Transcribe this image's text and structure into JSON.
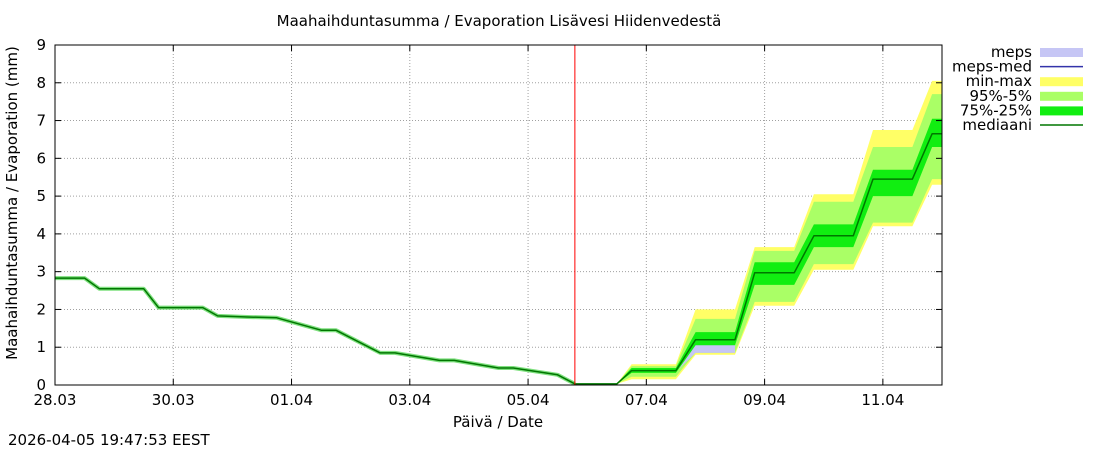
{
  "chart_data": {
    "type": "area",
    "title": "Maahaihduntasumma / Evaporation   Lisävesi Hiidenvedestä",
    "xlabel": "Päivä / Date",
    "ylabel": "Maahaihduntasumma / Evaporation (mm)",
    "ylim": [
      0,
      9
    ],
    "xlim": [
      "2026-03-28T00:00",
      "2026-04-12T00:00"
    ],
    "grid": true,
    "legend_position": "right, outside plot",
    "forecast_start": "2026-04-05T19:00",
    "x_tick_labels": [
      "28.03",
      "30.03",
      "01.04",
      "03.04",
      "05.04",
      "07.04",
      "09.04",
      "11.04"
    ],
    "x_tick_dates": [
      "2026-03-28",
      "2026-03-30",
      "2026-04-01",
      "2026-04-03",
      "2026-04-05",
      "2026-04-07",
      "2026-04-09",
      "2026-04-11"
    ],
    "y_tick_labels": [
      "0",
      "1",
      "2",
      "3",
      "4",
      "5",
      "6",
      "7",
      "8",
      "9"
    ],
    "legend": [
      {
        "label": "meps",
        "color": "#c6c6f5",
        "style": "band"
      },
      {
        "label": "meps-med",
        "color": "#3333aa",
        "style": "line"
      },
      {
        "label": "min-max",
        "color": "#ffff66",
        "style": "band"
      },
      {
        "label": "95%-5%",
        "color": "#aaff66",
        "style": "band"
      },
      {
        "label": "75%-25%",
        "color": "#11ee11",
        "style": "band"
      },
      {
        "label": "mediaani",
        "color": "#007700",
        "style": "line"
      }
    ],
    "observed": {
      "x": [
        "2026-03-28T00:00",
        "2026-03-28T12:00",
        "2026-03-28T18:00",
        "2026-03-29T12:00",
        "2026-03-29T18:00",
        "2026-03-30T12:00",
        "2026-03-30T18:00",
        "2026-03-31T06:00",
        "2026-03-31T18:00",
        "2026-04-01T12:00",
        "2026-04-01T18:00",
        "2026-04-02T12:00",
        "2026-04-02T18:00",
        "2026-04-03T12:00",
        "2026-04-03T18:00",
        "2026-04-04T12:00",
        "2026-04-04T18:00",
        "2026-04-05T12:00",
        "2026-04-05T19:00"
      ],
      "y": [
        2.83,
        2.83,
        2.55,
        2.55,
        2.05,
        2.05,
        1.83,
        1.8,
        1.78,
        1.45,
        1.45,
        0.85,
        0.85,
        0.65,
        0.65,
        0.45,
        0.45,
        0.27,
        0.03
      ]
    },
    "forecast": {
      "x": [
        "2026-04-05T19:00",
        "2026-04-06T12:00",
        "2026-04-06T18:00",
        "2026-04-07T12:00",
        "2026-04-07T20:00",
        "2026-04-08T12:00",
        "2026-04-08T20:00",
        "2026-04-09T12:00",
        "2026-04-09T20:00",
        "2026-04-10T12:00",
        "2026-04-10T20:00",
        "2026-04-11T12:00",
        "2026-04-11T20:00",
        "2026-04-12T00:00"
      ],
      "median": [
        0.03,
        0.03,
        0.38,
        0.38,
        1.2,
        1.2,
        2.97,
        2.97,
        3.95,
        3.95,
        5.45,
        5.45,
        6.65,
        6.65
      ],
      "p25": [
        0.03,
        0.03,
        0.32,
        0.32,
        1.05,
        1.05,
        2.65,
        2.65,
        3.65,
        3.65,
        5.0,
        5.0,
        6.3,
        6.3
      ],
      "p75": [
        0.03,
        0.03,
        0.45,
        0.45,
        1.4,
        1.4,
        3.25,
        3.25,
        4.25,
        4.25,
        5.7,
        5.7,
        7.05,
        7.05
      ],
      "p5": [
        0.03,
        0.03,
        0.22,
        0.22,
        0.85,
        0.85,
        2.2,
        2.2,
        3.2,
        3.2,
        4.3,
        4.3,
        5.45,
        5.45
      ],
      "p95": [
        0.03,
        0.03,
        0.5,
        0.5,
        1.75,
        1.75,
        3.55,
        3.55,
        4.85,
        4.85,
        6.3,
        6.3,
        7.7,
        7.7
      ],
      "min": [
        0.03,
        0.03,
        0.15,
        0.15,
        0.8,
        0.8,
        2.1,
        2.1,
        3.05,
        3.05,
        4.2,
        4.2,
        5.3,
        5.3
      ],
      "max": [
        0.03,
        0.03,
        0.55,
        0.55,
        2.0,
        2.0,
        3.65,
        3.65,
        5.05,
        5.05,
        6.75,
        6.75,
        8.05,
        8.05
      ]
    },
    "meps": {
      "x": [
        "2026-04-05T19:00",
        "2026-04-06T12:00",
        "2026-04-06T18:00",
        "2026-04-07T12:00",
        "2026-04-07T20:00",
        "2026-04-08T12:00"
      ],
      "low": [
        0.03,
        0.03,
        0.35,
        0.35,
        0.85,
        0.85
      ],
      "high": [
        0.03,
        0.03,
        0.4,
        0.4,
        1.2,
        1.2
      ]
    }
  },
  "timestamp": "2026-04-05 19:47:53 EEST"
}
